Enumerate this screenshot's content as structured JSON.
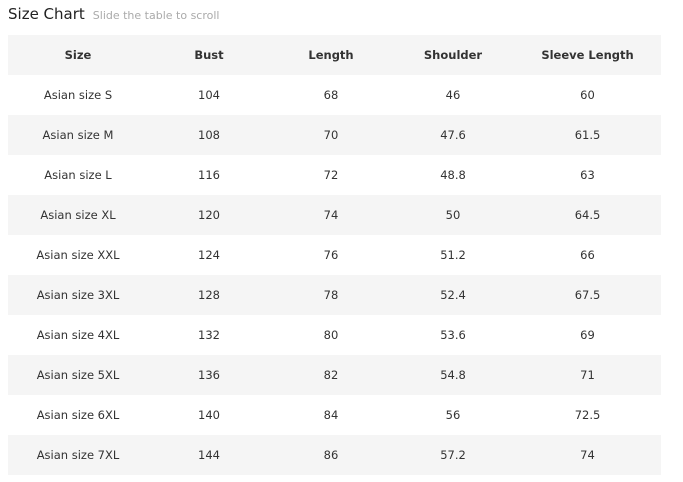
{
  "title": "Size Chart",
  "subtitle": "Slide the table to scroll",
  "headers": [
    "Size",
    "Bust",
    "Length",
    "Shoulder",
    "Sleeve Length"
  ],
  "rows": [
    [
      "Asian size S",
      "104",
      "68",
      "46",
      "60"
    ],
    [
      "Asian size M",
      "108",
      "70",
      "47.6",
      "61.5"
    ],
    [
      "Asian size L",
      "116",
      "72",
      "48.8",
      "63"
    ],
    [
      "Asian size XL",
      "120",
      "74",
      "50",
      "64.5"
    ],
    [
      "Asian size XXL",
      "124",
      "76",
      "51.2",
      "66"
    ],
    [
      "Asian size 3XL",
      "128",
      "78",
      "52.4",
      "67.5"
    ],
    [
      "Asian size 4XL",
      "132",
      "80",
      "53.6",
      "69"
    ],
    [
      "Asian size 5XL",
      "136",
      "82",
      "54.8",
      "71"
    ],
    [
      "Asian size 6XL",
      "140",
      "84",
      "56",
      "72.5"
    ],
    [
      "Asian size 7XL",
      "144",
      "86",
      "57.2",
      "74"
    ]
  ]
}
